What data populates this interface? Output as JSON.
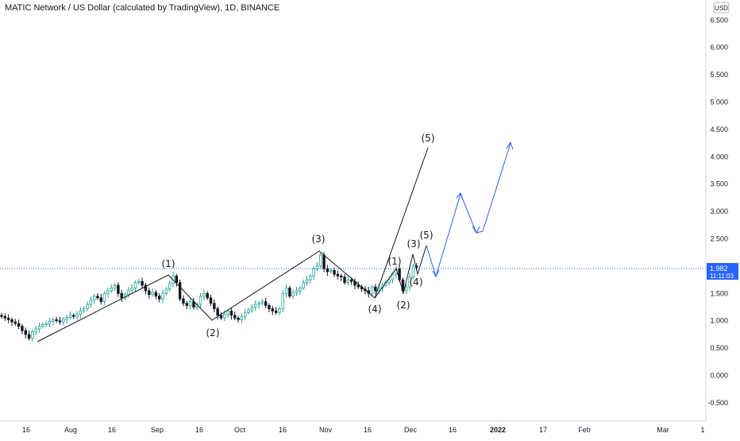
{
  "chart_data": {
    "type": "candlestick",
    "title": "MATIC Network / US Dollar (calculated by TradingView), 1D, BINANCE",
    "currency": "USD",
    "current_price": "1.982",
    "countdown": "11:11:03",
    "ylim": [
      -0.75,
      7.0
    ],
    "yticks": [
      "6.500",
      "6.000",
      "5.500",
      "5.000",
      "4.500",
      "4.000",
      "3.500",
      "3.000",
      "2.500",
      "2.000",
      "1.500",
      "1.000",
      "0.500",
      "0.000",
      "-0.500"
    ],
    "xticks": [
      "16",
      "Aug",
      "16",
      "Sep",
      "16",
      "Oct",
      "16",
      "Nov",
      "16",
      "Dec",
      "16",
      "2022",
      "17",
      "Feb",
      "Mar",
      "1"
    ],
    "bold_xticks": [
      "2022"
    ],
    "colors": {
      "up": "#26a69a",
      "down": "#131722",
      "bull_body": "#ffffff",
      "wave": "#131722",
      "projection": "#2962ff",
      "price_line": "#2962ff"
    },
    "closes": [
      1.08,
      1.05,
      1.02,
      0.98,
      0.95,
      0.9,
      0.82,
      0.75,
      0.68,
      0.8,
      0.85,
      0.9,
      0.93,
      0.95,
      0.99,
      1.02,
      1.0,
      0.98,
      1.03,
      1.06,
      1.1,
      1.08,
      1.12,
      1.18,
      1.22,
      1.3,
      1.38,
      1.45,
      1.42,
      1.35,
      1.5,
      1.55,
      1.6,
      1.65,
      1.5,
      1.42,
      1.48,
      1.56,
      1.6,
      1.7,
      1.72,
      1.65,
      1.55,
      1.48,
      1.52,
      1.45,
      1.4,
      1.5,
      1.58,
      1.68,
      1.82,
      1.7,
      1.4,
      1.32,
      1.28,
      1.35,
      1.25,
      1.3,
      1.45,
      1.5,
      1.42,
      1.32,
      1.22,
      1.1,
      1.05,
      1.12,
      1.18,
      1.1,
      1.05,
      1.02,
      1.08,
      1.15,
      1.2,
      1.25,
      1.3,
      1.32,
      1.35,
      1.28,
      1.22,
      1.18,
      1.15,
      1.22,
      1.5,
      1.6,
      1.45,
      1.52,
      1.55,
      1.6,
      1.7,
      1.75,
      1.82,
      1.95,
      2.0,
      2.2,
      1.95,
      1.9,
      1.92,
      1.85,
      1.82,
      1.8,
      1.7,
      1.75,
      1.72,
      1.65,
      1.62,
      1.58,
      1.55,
      1.5,
      1.62,
      1.55,
      1.6,
      1.65,
      1.7,
      1.75,
      1.85,
      1.95,
      1.75,
      1.55,
      1.62,
      1.8,
      2.0,
      1.98
    ],
    "wave_labels_primary": [
      "(1)",
      "(2)",
      "(3)",
      "(4)",
      "(5)"
    ],
    "wave_labels_sub": [
      "(1)",
      "(2)",
      "(3)",
      "(4)",
      "(5)"
    ]
  }
}
